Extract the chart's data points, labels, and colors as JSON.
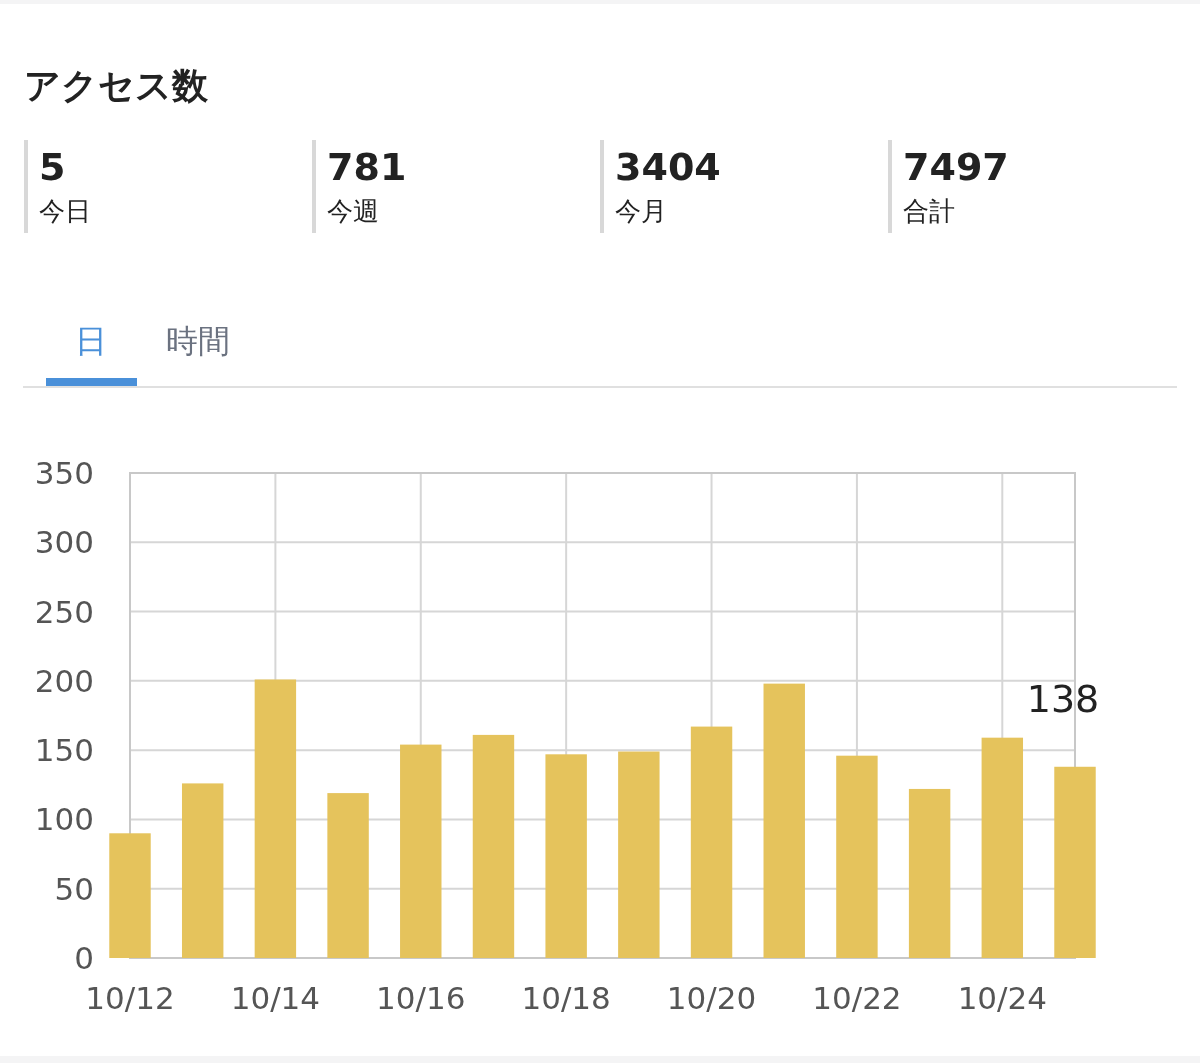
{
  "chart_data": [
    {
      "type": "other",
      "title": "アクセス数",
      "annotations": [
        "5",
        "今日",
        "781",
        "今週",
        "3404",
        "今月",
        "7497",
        "合計"
      ]
    },
    {
      "type": "bar",
      "annotations": [
        "日",
        "時間"
      ],
      "x": [
        "--10-12",
        "--10-13",
        "--10-14",
        "--10-15",
        "--10-16",
        "--10-17",
        "--10-18",
        "--10-19",
        "--10-20",
        "--10-21",
        "--10-22",
        "--10-23",
        "--10-24",
        "--10-25"
      ],
      "values": [
        90,
        126,
        201,
        119,
        154,
        161,
        147,
        149,
        167,
        198,
        146,
        122,
        159,
        138
      ],
      "value_labels": [
        null,
        null,
        null,
        null,
        null,
        null,
        null,
        null,
        null,
        null,
        null,
        null,
        null,
        "138"
      ],
      "color": "#e5c35c",
      "xlim": [
        "--10-12",
        "--10-25"
      ],
      "xticks": [
        {
          "value": "--10-12",
          "label": "10/12"
        },
        {
          "value": "--10-14",
          "label": "10/14"
        },
        {
          "value": "--10-16",
          "label": "10/16"
        },
        {
          "value": "--10-18",
          "label": "10/18"
        },
        {
          "value": "--10-20",
          "label": "10/20"
        },
        {
          "value": "--10-22",
          "label": "10/22"
        },
        {
          "value": "--10-24",
          "label": "10/24"
        }
      ],
      "ylim": [
        0,
        350
      ],
      "yticks": [
        0,
        50,
        100,
        150,
        200,
        250,
        300,
        350
      ],
      "grid": true
    }
  ]
}
